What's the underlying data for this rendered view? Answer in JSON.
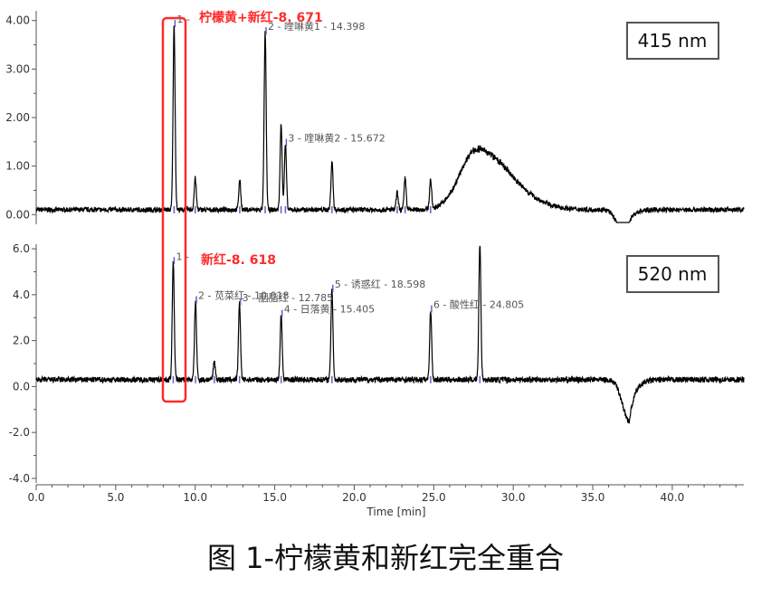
{
  "caption": "图 1-柠檬黄和新红完全重合",
  "chart_data": [
    {
      "type": "line",
      "wavelength_label": "415 nm",
      "highlight_label": "柠檬黄+新红-8. 671",
      "ylim": [
        -0.2,
        4.2
      ],
      "y_ticks": [
        "0.00",
        "1.00",
        "2.00",
        "3.00",
        "4.00"
      ],
      "y_tick_values": [
        0,
        1,
        2,
        3,
        4
      ],
      "baseline": 0.1,
      "peaks": [
        {
          "label": "1 -",
          "rt": 8.671,
          "height": 3.9
        },
        {
          "label": "2 - 喹啉黄1 - 14.398",
          "rt": 14.398,
          "height": 3.75
        },
        {
          "label": "3 - 喹啉黄2 - 15.672",
          "rt": 15.672,
          "height": 1.45
        },
        {
          "label": "",
          "rt": 10.0,
          "height": 0.75
        },
        {
          "label": "",
          "rt": 12.8,
          "height": 0.7
        },
        {
          "label": "",
          "rt": 15.4,
          "height": 1.85
        },
        {
          "label": "",
          "rt": 18.6,
          "height": 1.1
        },
        {
          "label": "",
          "rt": 22.7,
          "height": 0.45
        },
        {
          "label": "",
          "rt": 23.2,
          "height": 0.75
        },
        {
          "label": "",
          "rt": 24.8,
          "height": 0.7
        }
      ],
      "hump": {
        "center": 27.7,
        "height": 1.35
      },
      "dip": {
        "rt": 37.0,
        "depth": -0.45
      }
    },
    {
      "type": "line",
      "wavelength_label": "520 nm",
      "highlight_label": "新红-8. 618",
      "ylim": [
        -4.2,
        6.2
      ],
      "y_ticks": [
        "-4.0",
        "-2.0",
        "0.0",
        "2.0",
        "4.0",
        "6.0"
      ],
      "y_tick_values": [
        -4,
        -2,
        0,
        2,
        4,
        6
      ],
      "baseline": 0.3,
      "peaks": [
        {
          "label": "1 -",
          "rt": 8.618,
          "height": 5.4
        },
        {
          "label": "2 - 苋菜红 - 10.018",
          "rt": 10.018,
          "height": 3.7
        },
        {
          "label": "3 - 胭脂红 - 12.785",
          "rt": 12.785,
          "height": 3.6
        },
        {
          "label": "4 - 日落黄 - 15.405",
          "rt": 15.405,
          "height": 3.1
        },
        {
          "label": "5 - 诱惑红 - 18.598",
          "rt": 18.598,
          "height": 4.2
        },
        {
          "label": "6 - 酸性红 - 24.805",
          "rt": 24.805,
          "height": 3.3
        },
        {
          "label": "",
          "rt": 11.2,
          "height": 1.1
        },
        {
          "label": "",
          "rt": 27.9,
          "height": 6.3
        }
      ],
      "dip": {
        "rt": 37.3,
        "depth": -1.5
      }
    }
  ],
  "x_axis": {
    "title": "Time [min]",
    "xlim": [
      0,
      44.5
    ],
    "ticks": [
      "0.0",
      "5.0",
      "10.0",
      "15.0",
      "20.0",
      "25.0",
      "30.0",
      "35.0",
      "40.0"
    ],
    "tick_values": [
      0,
      5,
      10,
      15,
      20,
      25,
      30,
      35,
      40
    ]
  },
  "colors": {
    "trace": "#000000",
    "highlight": "#ff2a2a",
    "peak_marker": "#6a5acd",
    "axis": "#555555"
  }
}
